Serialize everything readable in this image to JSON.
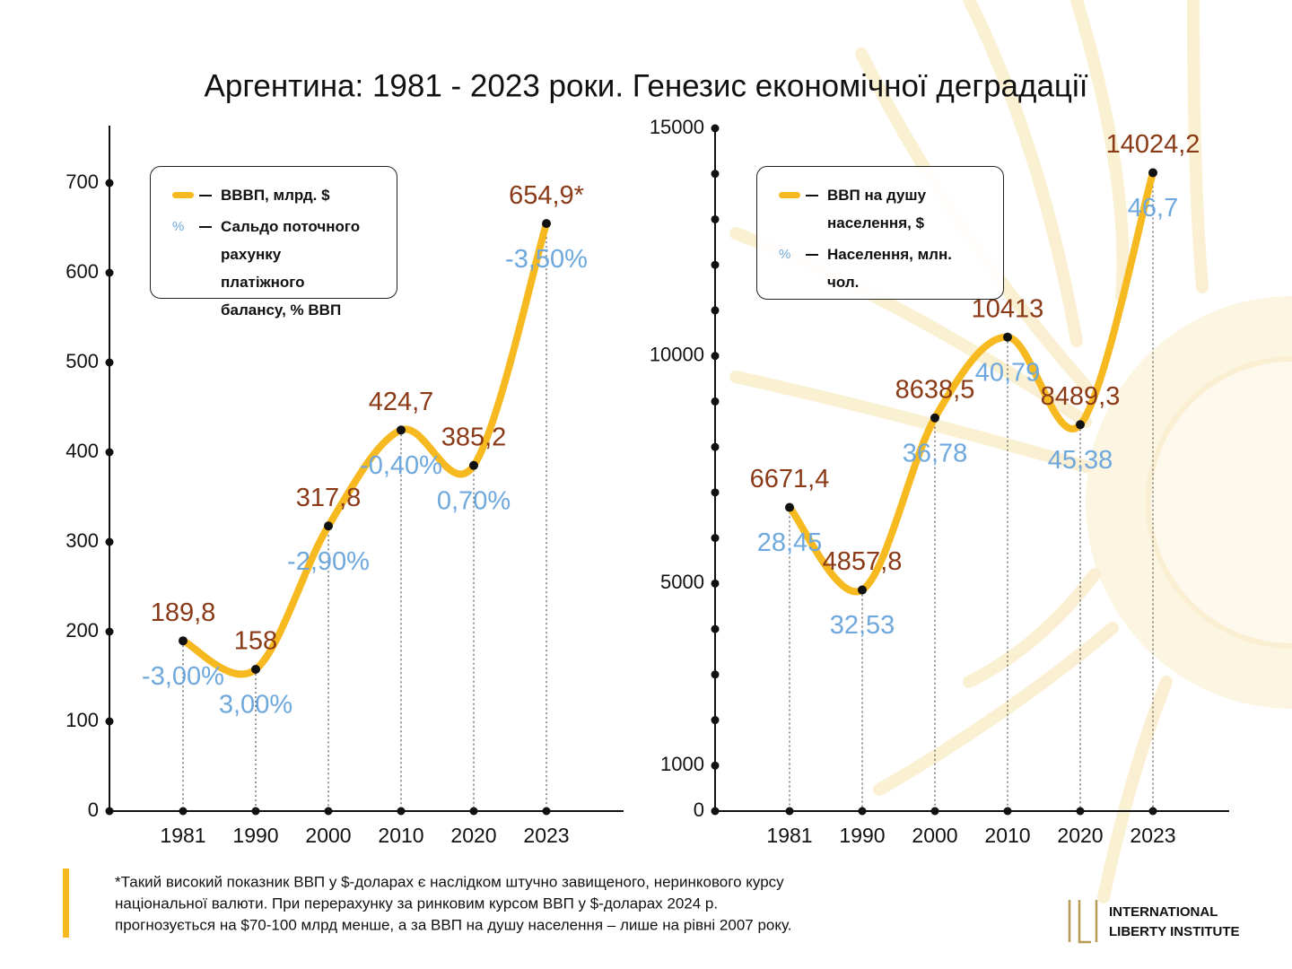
{
  "title": "Аргентина: 1981 - 2023 роки. Генезис економічної деградації",
  "chart_data": [
    {
      "type": "line",
      "categories": [
        "1981",
        "1990",
        "2000",
        "2010",
        "2020",
        "2023"
      ],
      "series": [
        {
          "name": "ВВВП, млрд. $",
          "color": "#f6b91f",
          "label_color": "#8a3a16",
          "values": [
            189.8,
            158,
            317.8,
            424.7,
            385.2,
            654.9
          ],
          "value_labels": [
            "189,8",
            "158",
            "317,8",
            "424,7",
            "385,2",
            "654,9*"
          ]
        },
        {
          "name": "Сальдо поточного рахунку платіжного балансу, % ВВП",
          "color": "#6fa8dc",
          "marker": "%",
          "values": [
            -3.0,
            3.0,
            -2.9,
            -0.4,
            0.7,
            -3.5
          ],
          "value_labels": [
            "-3,00%",
            "3,00%",
            "-2,90%",
            "-0,40%",
            "0,70%",
            "-3,50%"
          ]
        }
      ],
      "ylim": [
        0,
        764
      ],
      "yticks": [
        0,
        100,
        200,
        300,
        400,
        500,
        600,
        700
      ],
      "legend": "upper left"
    },
    {
      "type": "line",
      "categories": [
        "1981",
        "1990",
        "2000",
        "2010",
        "2020",
        "2023"
      ],
      "series": [
        {
          "name": "ВВП на душу населення, $",
          "color": "#f6b91f",
          "label_color": "#8a3a16",
          "values": [
            6671.4,
            4857.8,
            8638.5,
            10413,
            8489.3,
            14024.2
          ],
          "value_labels": [
            "6671,4",
            "4857,8",
            "8638,5",
            "10413",
            "8489,3",
            "14024,2"
          ]
        },
        {
          "name": "Населення, млн. чол.",
          "color": "#6fa8dc",
          "marker": "%",
          "values": [
            28.45,
            32.53,
            36.78,
            40.79,
            45.38,
            46.7
          ],
          "value_labels": [
            "28,45",
            "32,53",
            "36,78",
            "40,79",
            "45,38",
            "46,7"
          ]
        }
      ],
      "ylim": [
        0,
        15000
      ],
      "yticks": [
        0,
        1000,
        5000,
        10000,
        15000
      ],
      "minor_yticks": [
        0,
        1000,
        2000,
        3000,
        4000,
        5000,
        6000,
        7000,
        8000,
        9000,
        10000,
        11000,
        12000,
        13000,
        14000,
        15000
      ],
      "legend": "upper left"
    }
  ],
  "footnote": [
    "*Такий високий показник ВВП у $-доларах є наслідком штучно завищеного, неринкового курсу",
    "національної валюти. При перерахунку за ринковим курсом ВВП у $-доларах 2024 р.",
    "прогнозується на $70-100 млрд менше, а за ВВП на душу населення – лише на рівні 2007 року."
  ],
  "logo": [
    "International",
    "Liberty Institute"
  ]
}
